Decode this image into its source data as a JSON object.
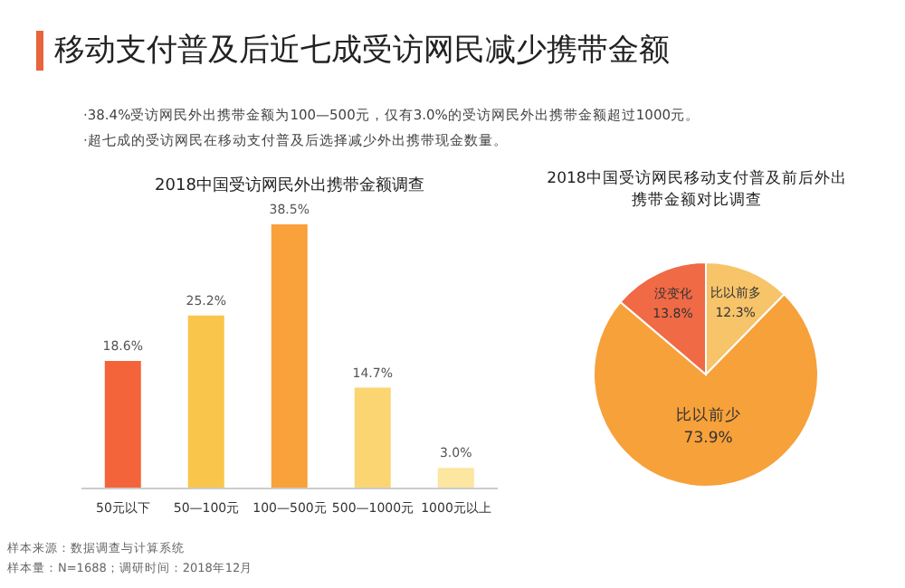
{
  "chart_data": [
    {
      "type": "bar",
      "title": "2018中国受访网民外出携带金额调查",
      "categories": [
        "50元以下",
        "50—100元",
        "100—500元",
        "500—1000元",
        "1000元以上"
      ],
      "values": [
        18.6,
        25.2,
        38.5,
        14.7,
        3.0
      ],
      "value_labels": [
        "18.6%",
        "25.2%",
        "38.5%",
        "14.7%",
        "3.0%"
      ],
      "colors": [
        "#f4643a",
        "#f9c54b",
        "#f9a13a",
        "#fbd572",
        "#fce6a0"
      ],
      "annotations": [
        "移动支付普及后近七成受访网民减少携带金额",
        "·38.4%受访网民外出携带金额为100—500元，仅有3.0%的受访网民外出携带金额超过1000元。",
        "·超七成的受访网民在移动支付普及后选择减少外出携带现金数量。",
        "样本来源：数据调查与计算系统",
        "样本量：N=1688；调研时间：2018年12月"
      ]
    },
    {
      "type": "pie",
      "title": "2018中国受访网民移动支付普及前后外出携带金额对比调查",
      "categories": [
        "比以前多",
        "比以前少",
        "没变化"
      ],
      "values": [
        12.3,
        73.9,
        13.8
      ],
      "value_labels": [
        "12.3%",
        "73.9%",
        "13.8%"
      ],
      "colors": [
        "#f7c46a",
        "#f7a13a",
        "#f06a45"
      ]
    }
  ]
}
